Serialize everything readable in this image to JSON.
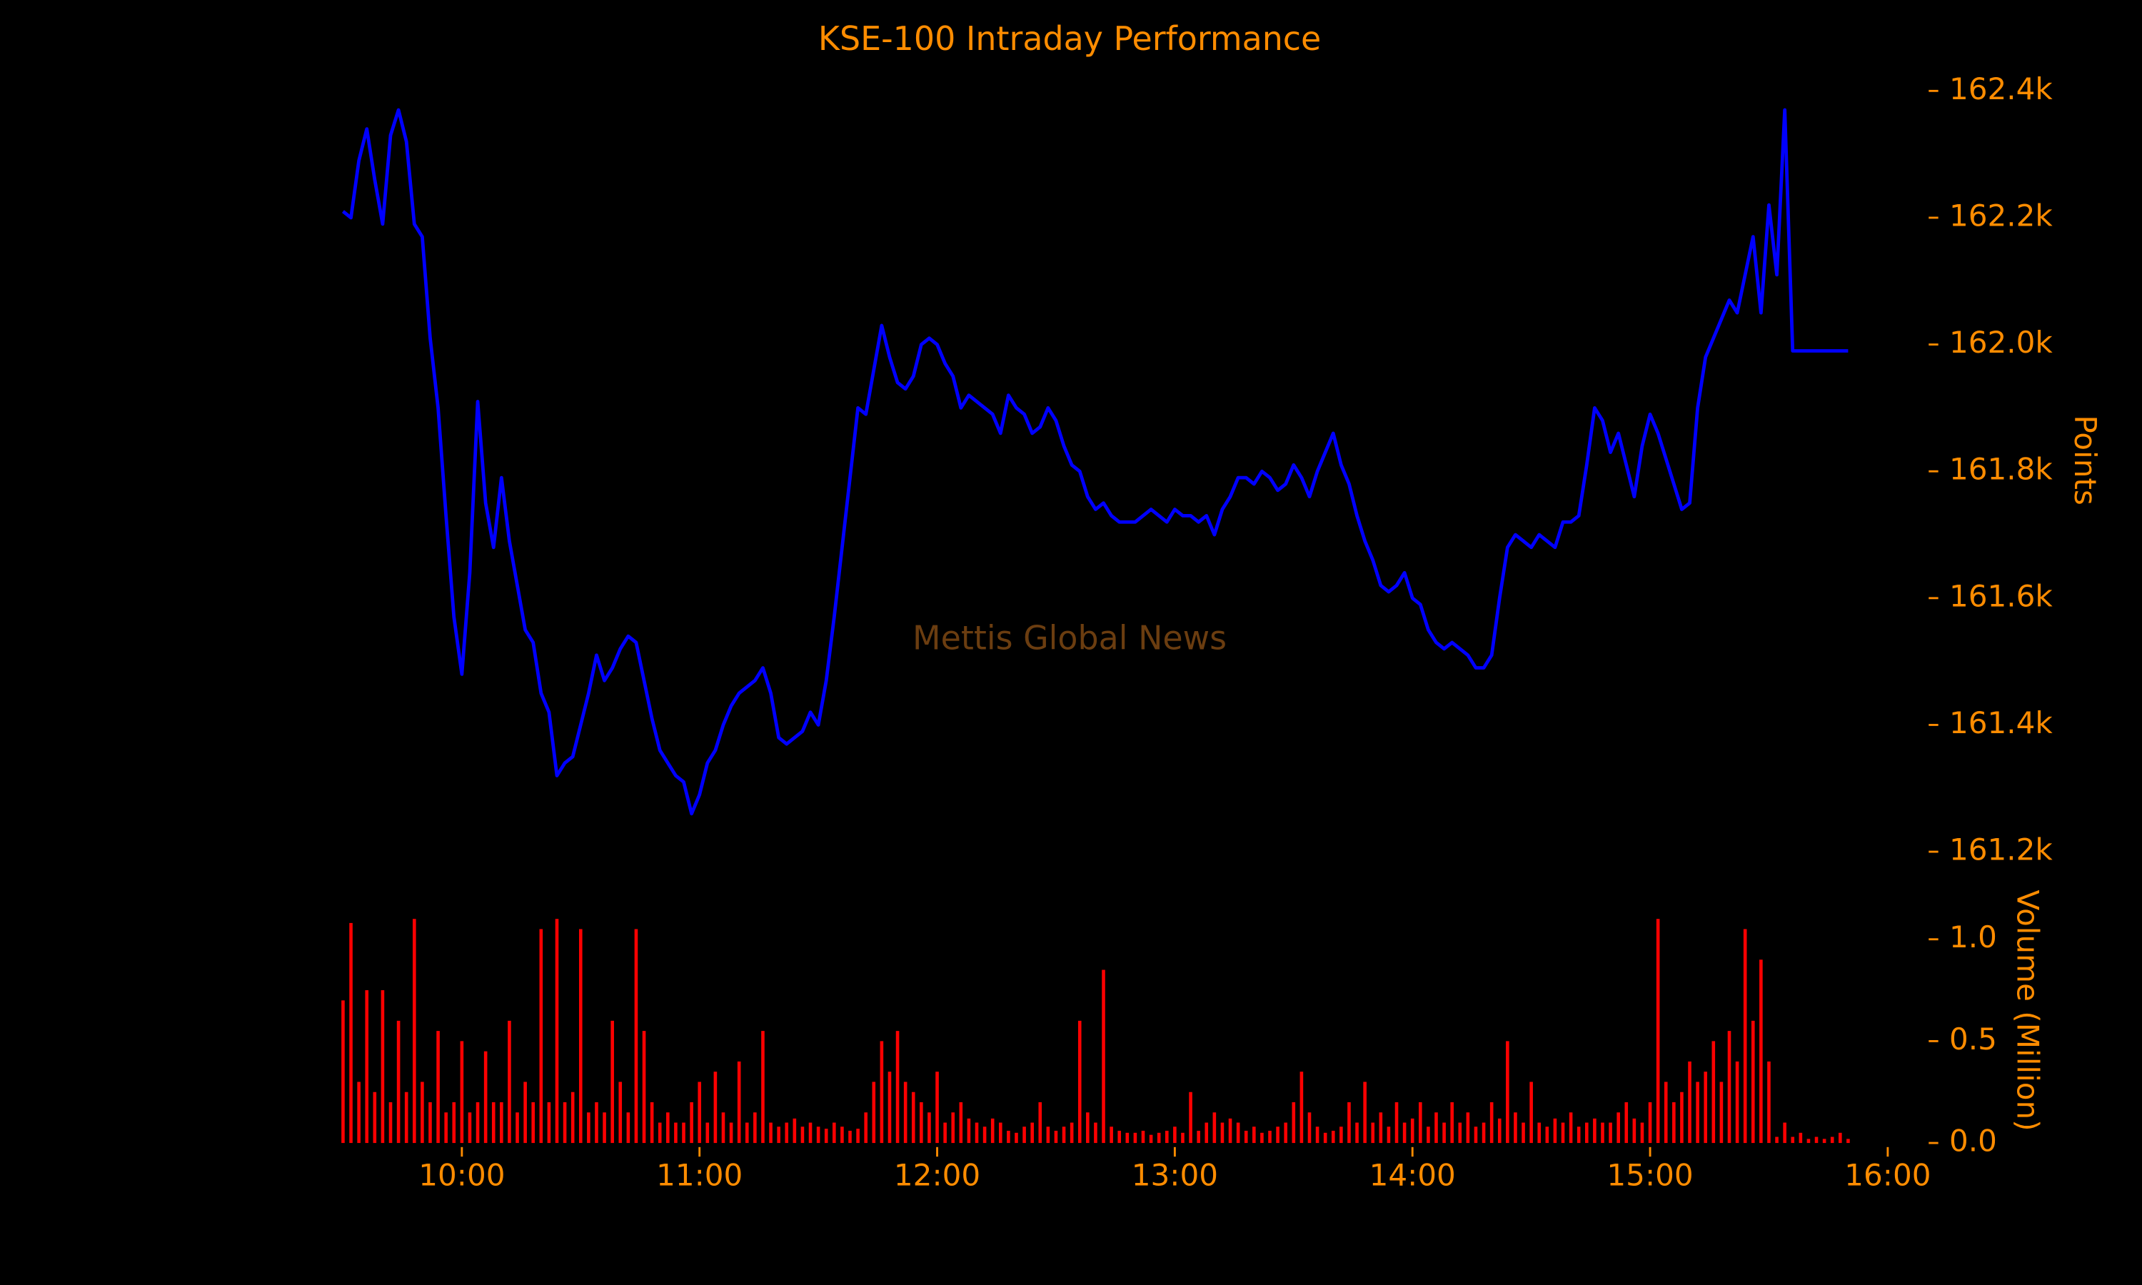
{
  "chart_data": {
    "type": "line",
    "title": "KSE-100 Intraday Performance",
    "annotation": "Mettis Global News",
    "ylabel": "Points",
    "y2label": "Volume (Million)",
    "xlim": [
      "09:30",
      "16:10"
    ],
    "xticks": [
      "10:00",
      "11:00",
      "12:00",
      "13:00",
      "14:00",
      "15:00",
      "16:00"
    ],
    "ylim": [
      161180,
      162440
    ],
    "yticks": [
      {
        "value": 161200,
        "label": "161.2k"
      },
      {
        "value": 161400,
        "label": "161.4k"
      },
      {
        "value": 161600,
        "label": "161.6k"
      },
      {
        "value": 161800,
        "label": "161.8k"
      },
      {
        "value": 162000,
        "label": "162.0k"
      },
      {
        "value": 162200,
        "label": "162.2k"
      },
      {
        "value": 162400,
        "label": "162.4k"
      }
    ],
    "y2lim": [
      0,
      1.2
    ],
    "y2ticks": [
      {
        "value": 0,
        "label": "0.0"
      },
      {
        "value": 0.5,
        "label": "0.5"
      },
      {
        "value": 1,
        "label": "1.0"
      }
    ],
    "background": "#000000",
    "text_color": "#ff8c00",
    "annotation_color": "#6b3d10",
    "x": [
      "09:30",
      "09:32",
      "09:34",
      "09:36",
      "09:38",
      "09:40",
      "09:42",
      "09:44",
      "09:46",
      "09:48",
      "09:50",
      "09:52",
      "09:54",
      "09:56",
      "09:58",
      "10:00",
      "10:02",
      "10:04",
      "10:06",
      "10:08",
      "10:10",
      "10:12",
      "10:14",
      "10:16",
      "10:18",
      "10:20",
      "10:22",
      "10:24",
      "10:26",
      "10:28",
      "10:30",
      "10:32",
      "10:34",
      "10:36",
      "10:38",
      "10:40",
      "10:42",
      "10:44",
      "10:46",
      "10:48",
      "10:50",
      "10:52",
      "10:54",
      "10:56",
      "10:58",
      "11:00",
      "11:02",
      "11:04",
      "11:06",
      "11:08",
      "11:10",
      "11:12",
      "11:14",
      "11:16",
      "11:18",
      "11:20",
      "11:22",
      "11:24",
      "11:26",
      "11:28",
      "11:30",
      "11:32",
      "11:34",
      "11:36",
      "11:38",
      "11:40",
      "11:42",
      "11:44",
      "11:46",
      "11:48",
      "11:50",
      "11:52",
      "11:54",
      "11:56",
      "11:58",
      "12:00",
      "12:02",
      "12:04",
      "12:06",
      "12:08",
      "12:10",
      "12:12",
      "12:14",
      "12:16",
      "12:18",
      "12:20",
      "12:22",
      "12:24",
      "12:26",
      "12:28",
      "12:30",
      "12:32",
      "12:34",
      "12:36",
      "12:38",
      "12:40",
      "12:42",
      "12:44",
      "12:46",
      "12:48",
      "12:50",
      "12:52",
      "12:54",
      "12:56",
      "12:58",
      "13:00",
      "13:02",
      "13:04",
      "13:06",
      "13:08",
      "13:10",
      "13:12",
      "13:14",
      "13:16",
      "13:18",
      "13:20",
      "13:22",
      "13:24",
      "13:26",
      "13:28",
      "13:30",
      "13:32",
      "13:34",
      "13:36",
      "13:38",
      "13:40",
      "13:42",
      "13:44",
      "13:46",
      "13:48",
      "13:50",
      "13:52",
      "13:54",
      "13:56",
      "13:58",
      "14:00",
      "14:02",
      "14:04",
      "14:06",
      "14:08",
      "14:10",
      "14:12",
      "14:14",
      "14:16",
      "14:18",
      "14:20",
      "14:22",
      "14:24",
      "14:26",
      "14:28",
      "14:30",
      "14:32",
      "14:34",
      "14:36",
      "14:38",
      "14:40",
      "14:42",
      "14:44",
      "14:46",
      "14:48",
      "14:50",
      "14:52",
      "14:54",
      "14:56",
      "14:58",
      "15:00",
      "15:02",
      "15:04",
      "15:06",
      "15:08",
      "15:10",
      "15:12",
      "15:14",
      "15:16",
      "15:18",
      "15:20",
      "15:22",
      "15:24",
      "15:26",
      "15:28",
      "15:30",
      "15:32",
      "15:34",
      "15:36",
      "15:38",
      "15:40",
      "15:42",
      "15:44",
      "15:46",
      "15:48",
      "15:50"
    ],
    "series": [
      {
        "color": "#0000ff",
        "values": [
          162210,
          162200,
          162290,
          162340,
          162260,
          162190,
          162330,
          162370,
          162320,
          162190,
          162170,
          162010,
          161900,
          161730,
          161570,
          161480,
          161640,
          161910,
          161750,
          161680,
          161790,
          161690,
          161620,
          161550,
          161530,
          161450,
          161420,
          161320,
          161340,
          161350,
          161400,
          161450,
          161510,
          161470,
          161490,
          161520,
          161540,
          161530,
          161470,
          161410,
          161360,
          161340,
          161320,
          161310,
          161260,
          161290,
          161340,
          161360,
          161400,
          161430,
          161450,
          161460,
          161470,
          161490,
          161450,
          161380,
          161370,
          161380,
          161390,
          161420,
          161400,
          161470,
          161570,
          161680,
          161790,
          161900,
          161890,
          161960,
          162030,
          161980,
          161940,
          161930,
          161950,
          162000,
          162010,
          162000,
          161970,
          161950,
          161900,
          161920,
          161910,
          161900,
          161890,
          161860,
          161920,
          161900,
          161890,
          161860,
          161870,
          161900,
          161880,
          161840,
          161810,
          161800,
          161760,
          161740,
          161750,
          161730,
          161720,
          161720,
          161720,
          161730,
          161740,
          161730,
          161720,
          161740,
          161730,
          161730,
          161720,
          161730,
          161700,
          161740,
          161760,
          161790,
          161790,
          161780,
          161800,
          161790,
          161770,
          161780,
          161810,
          161790,
          161760,
          161800,
          161830,
          161860,
          161810,
          161780,
          161730,
          161690,
          161660,
          161620,
          161610,
          161620,
          161640,
          161600,
          161590,
          161550,
          161530,
          161520,
          161530,
          161520,
          161510,
          161490,
          161490,
          161510,
          161600,
          161680,
          161700,
          161690,
          161680,
          161700,
          161690,
          161680,
          161720,
          161720,
          161730,
          161810,
          161900,
          161880,
          161830,
          161860,
          161810,
          161760,
          161840,
          161890,
          161860,
          161820,
          161780,
          161740,
          161750,
          161900,
          161980,
          162010,
          162040,
          162070,
          162050,
          162110,
          162170,
          162050,
          162220,
          162110,
          162370,
          161990,
          161990,
          161990,
          161990,
          161990,
          161990,
          161990,
          161990
        ]
      },
      {
        "type": "bar",
        "axis": "y2",
        "color": "#ff0000",
        "values": [
          0.7,
          1.08,
          0.3,
          0.75,
          0.25,
          0.75,
          0.2,
          0.6,
          0.25,
          1.1,
          0.3,
          0.2,
          0.55,
          0.15,
          0.2,
          0.5,
          0.15,
          0.2,
          0.45,
          0.2,
          0.2,
          0.6,
          0.15,
          0.3,
          0.2,
          1.05,
          0.2,
          1.1,
          0.2,
          0.25,
          1.05,
          0.15,
          0.2,
          0.15,
          0.6,
          0.3,
          0.15,
          1.05,
          0.55,
          0.2,
          0.1,
          0.15,
          0.1,
          0.1,
          0.2,
          0.3,
          0.1,
          0.35,
          0.15,
          0.1,
          0.4,
          0.1,
          0.15,
          0.55,
          0.1,
          0.08,
          0.1,
          0.12,
          0.08,
          0.1,
          0.08,
          0.07,
          0.1,
          0.08,
          0.06,
          0.07,
          0.15,
          0.3,
          0.5,
          0.35,
          0.55,
          0.3,
          0.25,
          0.2,
          0.15,
          0.35,
          0.1,
          0.15,
          0.2,
          0.12,
          0.1,
          0.08,
          0.12,
          0.1,
          0.06,
          0.05,
          0.08,
          0.1,
          0.2,
          0.08,
          0.06,
          0.08,
          0.1,
          0.6,
          0.15,
          0.1,
          0.85,
          0.08,
          0.06,
          0.05,
          0.05,
          0.06,
          0.04,
          0.05,
          0.06,
          0.08,
          0.05,
          0.25,
          0.06,
          0.1,
          0.15,
          0.1,
          0.12,
          0.1,
          0.06,
          0.08,
          0.05,
          0.06,
          0.08,
          0.1,
          0.2,
          0.35,
          0.15,
          0.08,
          0.05,
          0.06,
          0.08,
          0.2,
          0.1,
          0.3,
          0.1,
          0.15,
          0.08,
          0.2,
          0.1,
          0.12,
          0.2,
          0.08,
          0.15,
          0.1,
          0.2,
          0.1,
          0.15,
          0.08,
          0.1,
          0.2,
          0.12,
          0.5,
          0.15,
          0.1,
          0.3,
          0.1,
          0.08,
          0.12,
          0.1,
          0.15,
          0.08,
          0.1,
          0.12,
          0.1,
          0.1,
          0.15,
          0.2,
          0.12,
          0.1,
          0.2,
          1.1,
          0.3,
          0.2,
          0.25,
          0.4,
          0.3,
          0.35,
          0.5,
          0.3,
          0.55,
          0.4,
          1.05,
          0.6,
          0.9,
          0.4,
          0.03,
          0.1,
          0.03,
          0.05,
          0.02,
          0.03,
          0.02,
          0.03,
          0.05,
          0.02
        ]
      }
    ]
  }
}
